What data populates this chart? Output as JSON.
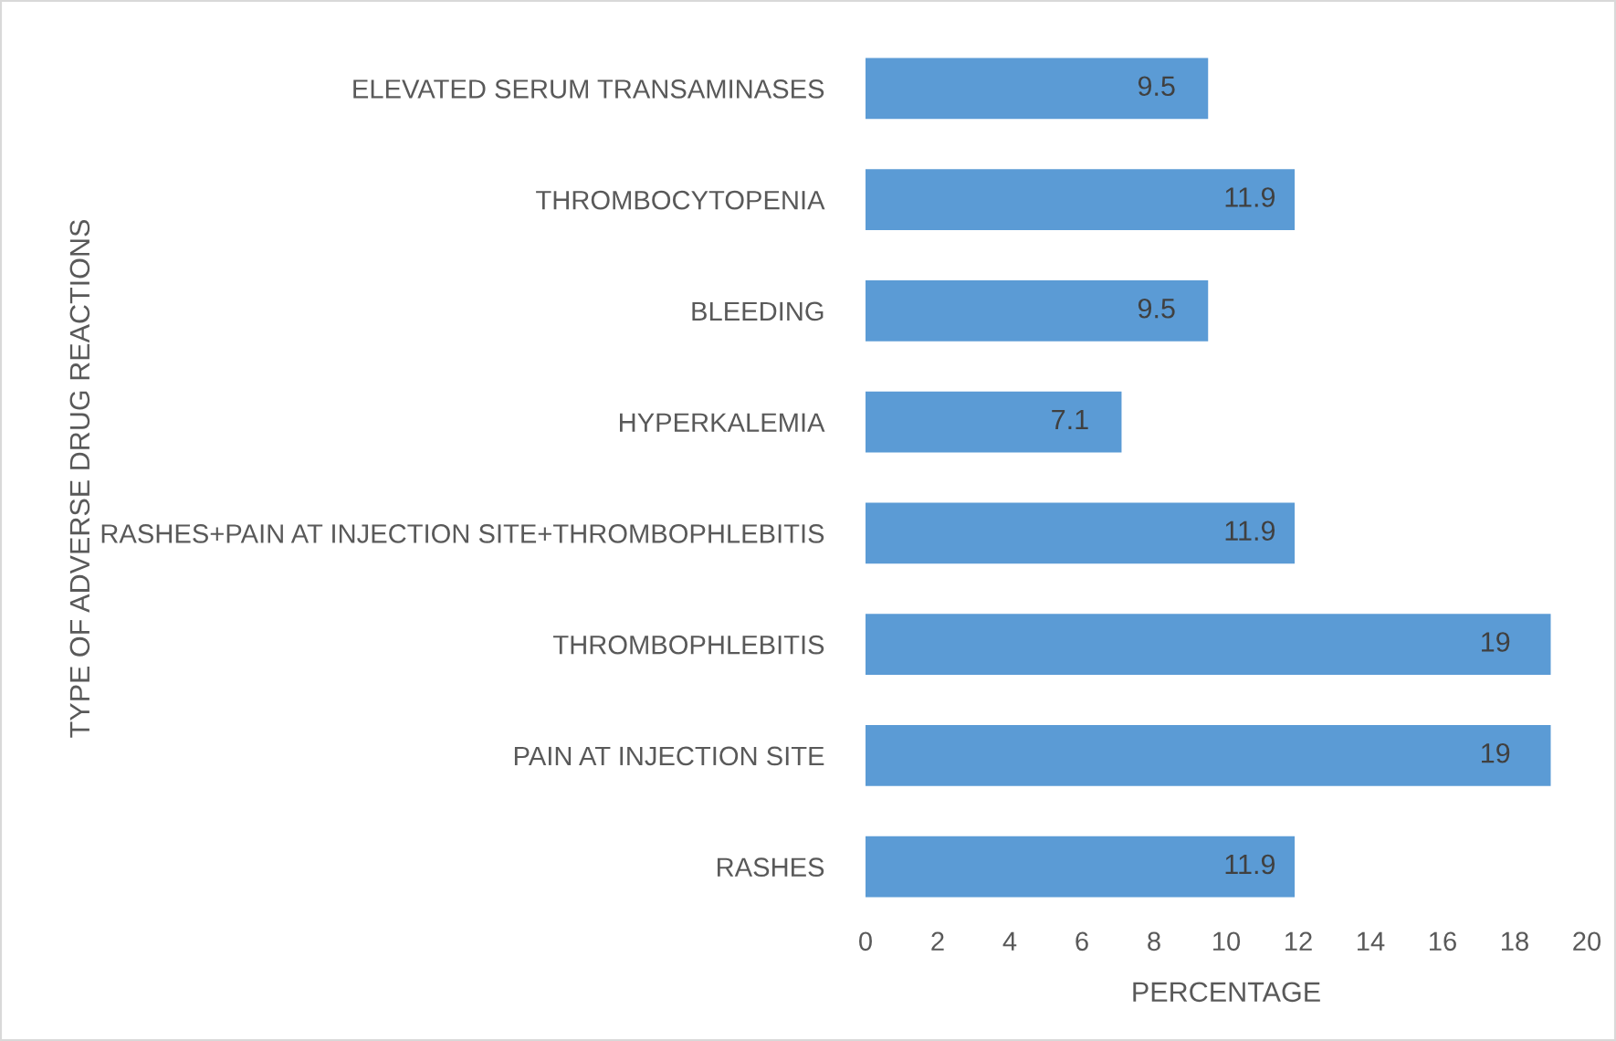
{
  "chart_data": {
    "type": "bar",
    "orientation": "horizontal",
    "xlabel": "PERCENTAGE",
    "ylabel": "TYPE OF ADVERSE DRUG REACTIONS",
    "categories": [
      "ELEVATED SERUM TRANSAMINASES",
      "THROMBOCYTOPENIA",
      "BLEEDING",
      "HYPERKALEMIA",
      "RASHES+PAIN AT INJECTION SITE+THROMBOPHLEBITIS",
      "THROMBOPHLEBITIS",
      "PAIN AT INJECTION SITE",
      "RASHES"
    ],
    "values": [
      9.5,
      11.9,
      9.5,
      7.1,
      11.9,
      19,
      19,
      11.9
    ],
    "color": "#5b9bd5",
    "xlim": [
      0,
      20
    ],
    "xticks": [
      0,
      2,
      4,
      6,
      8,
      10,
      12,
      14,
      16,
      18,
      20
    ],
    "data_labels": true,
    "grid": false,
    "legend": false
  }
}
